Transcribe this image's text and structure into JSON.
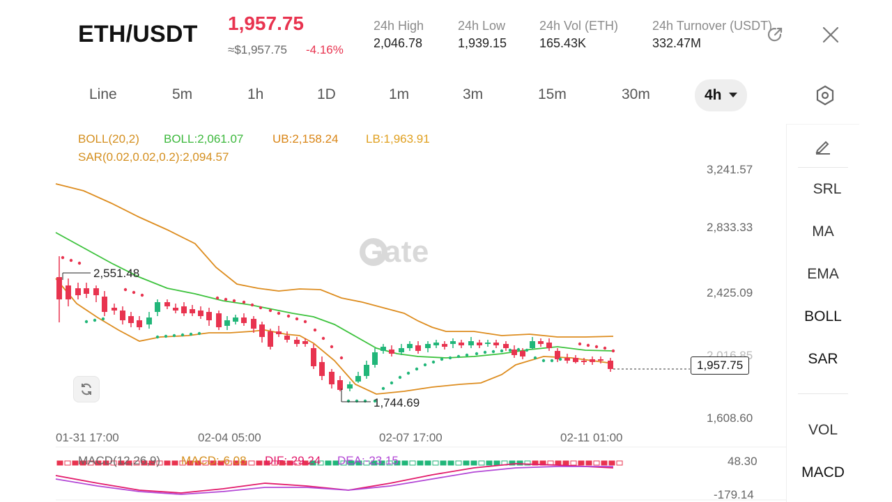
{
  "header": {
    "pair": "ETH/USDT",
    "last_price": "1,957.75",
    "approx_price": "≈$1,957.75",
    "change_pct": "-4.16%",
    "stats": [
      {
        "label": "24h  High",
        "value": "2,046.78"
      },
      {
        "label": "24h  Low",
        "value": "1,939.15"
      },
      {
        "label": "24h  Vol (ETH)",
        "value": "165.43K"
      },
      {
        "label": "24h  Turnover (USDT)",
        "value": "332.47M"
      }
    ],
    "share_icon": "share-icon",
    "close_icon": "close-icon"
  },
  "intervals": {
    "items": [
      "Line",
      "5m",
      "1h",
      "1D",
      "1m",
      "3m",
      "15m",
      "30m"
    ],
    "active": "4h",
    "settings_icon": "hexagon-settings-icon"
  },
  "indicators": {
    "boll_name": "BOLL(20,2)",
    "boll_mid": "BOLL:2,061.07",
    "boll_ub": "UB:2,158.24",
    "boll_lb": "LB:1,963.91",
    "sar": "SAR(0.02,0.02,0.2):2,094.57",
    "macd_name": "MACD(12,26,9)",
    "macd_val": "MACD:-6.08",
    "dif": "DIF:-29.24",
    "dea": "DEA:-23.15"
  },
  "price_axis": [
    "3,241.57",
    "2,833.33",
    "2,425.09",
    "2,016.85",
    "1,608.60"
  ],
  "macd_axis": [
    "48.30",
    "-179.14"
  ],
  "time_axis": [
    "01-31 17:00",
    "02-04 05:00",
    "02-07 17:00",
    "02-11 01:00"
  ],
  "markers": {
    "high": "2,551.48",
    "low": "1,744.69",
    "current": "1,957.75"
  },
  "watermark": "Gate",
  "right_panel": {
    "draw_icon": "pencil-icon",
    "items": [
      "SRL",
      "MA",
      "EMA",
      "BOLL",
      "SAR"
    ],
    "lower_items": [
      "VOL",
      "MACD"
    ]
  },
  "colors": {
    "up": "#21b679",
    "down": "#e8334f",
    "boll_mid": "#3cc23c",
    "boll_band": "#dd8c1e",
    "dif": "#e2196a",
    "dea": "#b347d6"
  }
}
